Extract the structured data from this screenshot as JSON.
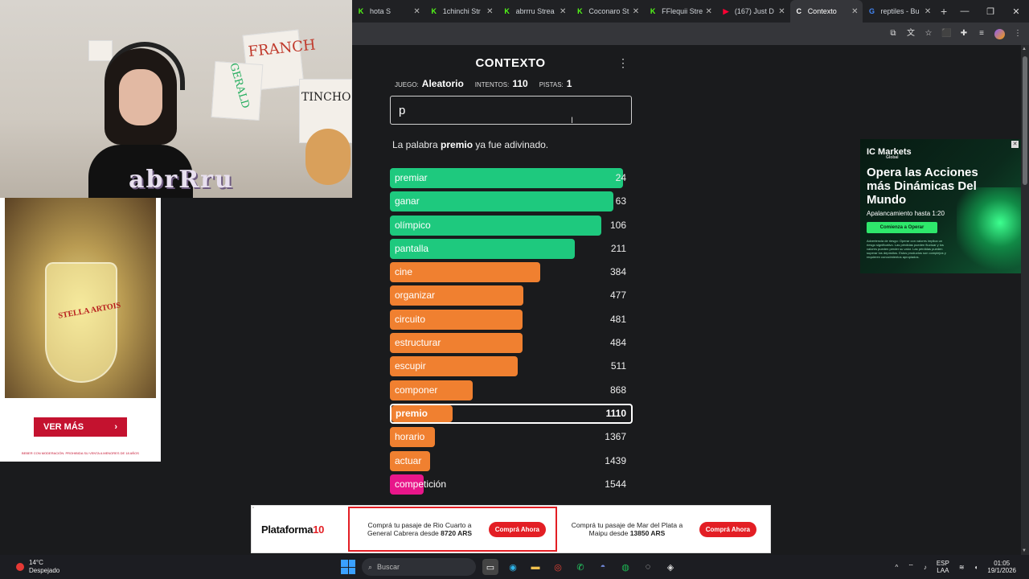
{
  "browser": {
    "tabs": [
      {
        "title": "hota S",
        "favicon": "kick-icon",
        "active": false
      },
      {
        "title": "1chinchi Str",
        "favicon": "kick-icon",
        "active": false
      },
      {
        "title": "abrrru Strea",
        "favicon": "kick-icon",
        "active": false
      },
      {
        "title": "Coconaro St",
        "favicon": "kick-icon",
        "active": false
      },
      {
        "title": "FFlequii Stre",
        "favicon": "kick-icon",
        "active": false
      },
      {
        "title": "(167) Just D",
        "favicon": "youtube-icon",
        "active": false
      },
      {
        "title": "Contexto",
        "favicon": "contexto-icon",
        "active": true
      },
      {
        "title": "reptiles - Bu",
        "favicon": "google-icon",
        "active": false
      }
    ]
  },
  "webcam": {
    "overlay_name": "abrRru",
    "sign_text_1": "FRANCH",
    "sign_text_2": "GERALD",
    "sign_text_3": "TINCHO"
  },
  "left_ad": {
    "brand": "STELLA ARTOIS",
    "button_label": "VER MÁS",
    "legal": "BEBER CON MODERACIÓN. PROHIBIDA SU VENTA A MENORES DE 18 AÑOS"
  },
  "game": {
    "title": "CONTEXTO",
    "meta": {
      "game_label": "JUEGO:",
      "game_value": "Aleatorio",
      "attempts_label": "INTENTOS:",
      "attempts_value": "110",
      "hints_label": "PISTAS:",
      "hints_value": "1"
    },
    "input_value": "p",
    "message": {
      "prefix": "La palabra ",
      "word": "premio",
      "suffix": " ya fue adivinado."
    },
    "guesses": [
      {
        "word": "premiar",
        "rank": "24",
        "fill": 0.96,
        "color": "#1ec97e",
        "current": false
      },
      {
        "word": "ganar",
        "rank": "63",
        "fill": 0.92,
        "color": "#1ec97e",
        "current": false
      },
      {
        "word": "olímpico",
        "rank": "106",
        "fill": 0.87,
        "color": "#1ec97e",
        "current": false
      },
      {
        "word": "pantalla",
        "rank": "211",
        "fill": 0.76,
        "color": "#1ec97e",
        "current": false
      },
      {
        "word": "cine",
        "rank": "384",
        "fill": 0.62,
        "color": "#f08030",
        "current": false
      },
      {
        "word": "organizar",
        "rank": "477",
        "fill": 0.55,
        "color": "#f08030",
        "current": false
      },
      {
        "word": "circuito",
        "rank": "481",
        "fill": 0.545,
        "color": "#f08030",
        "current": false
      },
      {
        "word": "estructurar",
        "rank": "484",
        "fill": 0.545,
        "color": "#f08030",
        "current": false
      },
      {
        "word": "escupir",
        "rank": "511",
        "fill": 0.525,
        "color": "#f08030",
        "current": false
      },
      {
        "word": "componer",
        "rank": "868",
        "fill": 0.34,
        "color": "#f08030",
        "current": false
      },
      {
        "word": "premio",
        "rank": "1110",
        "fill": 0.255,
        "color": "#f08030",
        "current": true
      },
      {
        "word": "horario",
        "rank": "1367",
        "fill": 0.185,
        "color": "#f08030",
        "current": false
      },
      {
        "word": "actuar",
        "rank": "1439",
        "fill": 0.165,
        "color": "#f08030",
        "current": false
      },
      {
        "word": "competición",
        "rank": "1544",
        "fill": 0.14,
        "color": "#e8168a",
        "current": false
      }
    ]
  },
  "right_ad": {
    "logo": "IC Markets",
    "logo_sub": "Global",
    "headline": "Opera las Acciones más Dinámicas Del Mundo",
    "sub": "Apalancamiento hasta 1:20",
    "cta": "Comienza a Operar",
    "fine": "Advertencia de riesgo: Operar con valores implica un riesgo significativo. Las pérdidas pueden fluctuar y los valores pueden perder su valor. Las pérdidas pueden superar los depósitos. Estos productos son complejos y requieren conocimientos apropiados."
  },
  "bottom_ad": {
    "logo_prefix": "Plataforma",
    "logo_suffix": "10",
    "offer1_line1": "Comprá tu pasaje de Rio Cuarto a",
    "offer1_line2_a": "General Cabrera desde ",
    "offer1_price": "8720 ARS",
    "offer2_line1": "Comprá tu pasaje de Mar del Plata a",
    "offer2_line2_a": "Maipu desde ",
    "offer2_price": "13850 ARS",
    "button": "Comprá Ahora"
  },
  "taskbar": {
    "temp": "14°C",
    "weather": "Despejado",
    "search_placeholder": "Buscar",
    "lang1": "ESP",
    "lang2": "LAA",
    "time": "01:05",
    "date": "19/1/2026"
  }
}
